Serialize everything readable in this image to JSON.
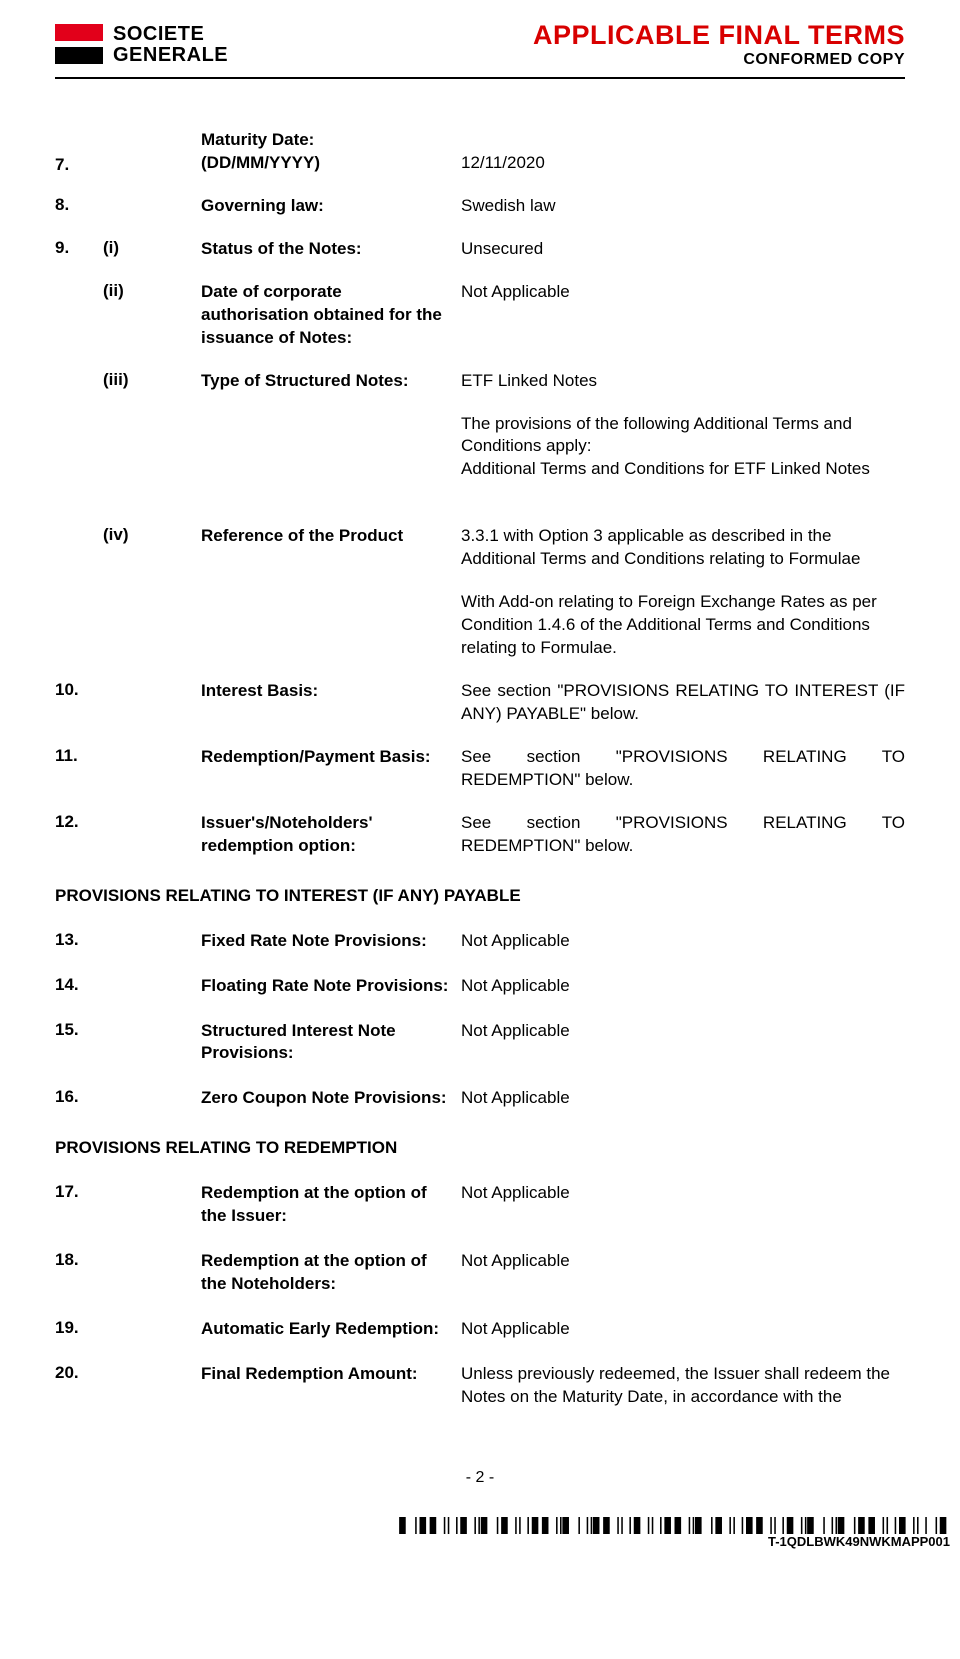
{
  "header": {
    "logo_line1": "SOCIETE",
    "logo_line2": "GENERALE",
    "title": "APPLICABLE FINAL TERMS",
    "subtitle": "CONFORMED COPY"
  },
  "items": [
    {
      "num": "7.",
      "sub": "",
      "label": "Maturity Date:\n(DD/MM/YYYY)",
      "value": "12/11/2020"
    },
    {
      "num": "8.",
      "sub": "",
      "label": "Governing law:",
      "value": "Swedish law"
    },
    {
      "num": "9.",
      "sub": "(i)",
      "label": "Status of the Notes:",
      "value": "Unsecured"
    },
    {
      "num": "",
      "sub": "(ii)",
      "label": "Date of corporate authorisation obtained for the issuance of Notes:",
      "value": "Not Applicable"
    },
    {
      "num": "",
      "sub": "(iii)",
      "label": "Type of Structured Notes:",
      "value": "ETF Linked Notes"
    },
    {
      "num": "",
      "sub": "",
      "label": "",
      "value": "The provisions of the following Additional Terms and Conditions apply:\nAdditional Terms and Conditions for ETF Linked Notes"
    },
    {
      "num": "",
      "sub": "(iv)",
      "label": "Reference of the Product",
      "value": "3.3.1 with Option 3 applicable as described in the Additional Terms and Conditions relating to Formulae"
    },
    {
      "num": "",
      "sub": "",
      "label": "",
      "value": "With Add-on relating to Foreign Exchange Rates as per Condition 1.4.6 of the Additional Terms and Conditions relating to Formulae."
    },
    {
      "num": "10.",
      "sub": "",
      "label": "Interest Basis:",
      "value": "See section \"PROVISIONS RELATING TO INTEREST (IF ANY) PAYABLE\" below.",
      "justify": true
    },
    {
      "num": "11.",
      "sub": "",
      "label": "Redemption/Payment Basis:",
      "value": "See section \"PROVISIONS RELATING TO REDEMPTION\" below.",
      "justify": true
    },
    {
      "num": "12.",
      "sub": "",
      "label": "Issuer's/Noteholders' redemption option:",
      "value": "See section \"PROVISIONS RELATING TO REDEMPTION\" below.",
      "justify": true
    }
  ],
  "section1": "PROVISIONS RELATING TO INTEREST (IF ANY) PAYABLE",
  "items2": [
    {
      "num": "13.",
      "sub": "",
      "label": "Fixed Rate Note Provisions:",
      "value": "Not Applicable"
    },
    {
      "num": "14.",
      "sub": "",
      "label": "Floating Rate Note Provisions:",
      "value": "Not Applicable"
    },
    {
      "num": "15.",
      "sub": "",
      "label": "Structured Interest Note Provisions:",
      "value": "Not Applicable"
    },
    {
      "num": "16.",
      "sub": "",
      "label": "Zero Coupon Note Provisions:",
      "value": "Not Applicable"
    }
  ],
  "section2": "PROVISIONS RELATING TO REDEMPTION",
  "items3": [
    {
      "num": "17.",
      "sub": "",
      "label": "Redemption at the option of the Issuer:",
      "value": "Not Applicable"
    },
    {
      "num": "18.",
      "sub": "",
      "label": "Redemption at the option of the Noteholders:",
      "value": "Not Applicable"
    },
    {
      "num": "19.",
      "sub": "",
      "label": "Automatic Early Redemption:",
      "value": "Not Applicable"
    },
    {
      "num": "20.",
      "sub": "",
      "label": "Final Redemption Amount:",
      "value": "Unless previously redeemed, the Issuer shall redeem the Notes on the Maturity Date, in accordance with the"
    }
  ],
  "page_number": "- 2 -",
  "barcode_label": "T-1QDLBWK49NWKMAPP001"
}
